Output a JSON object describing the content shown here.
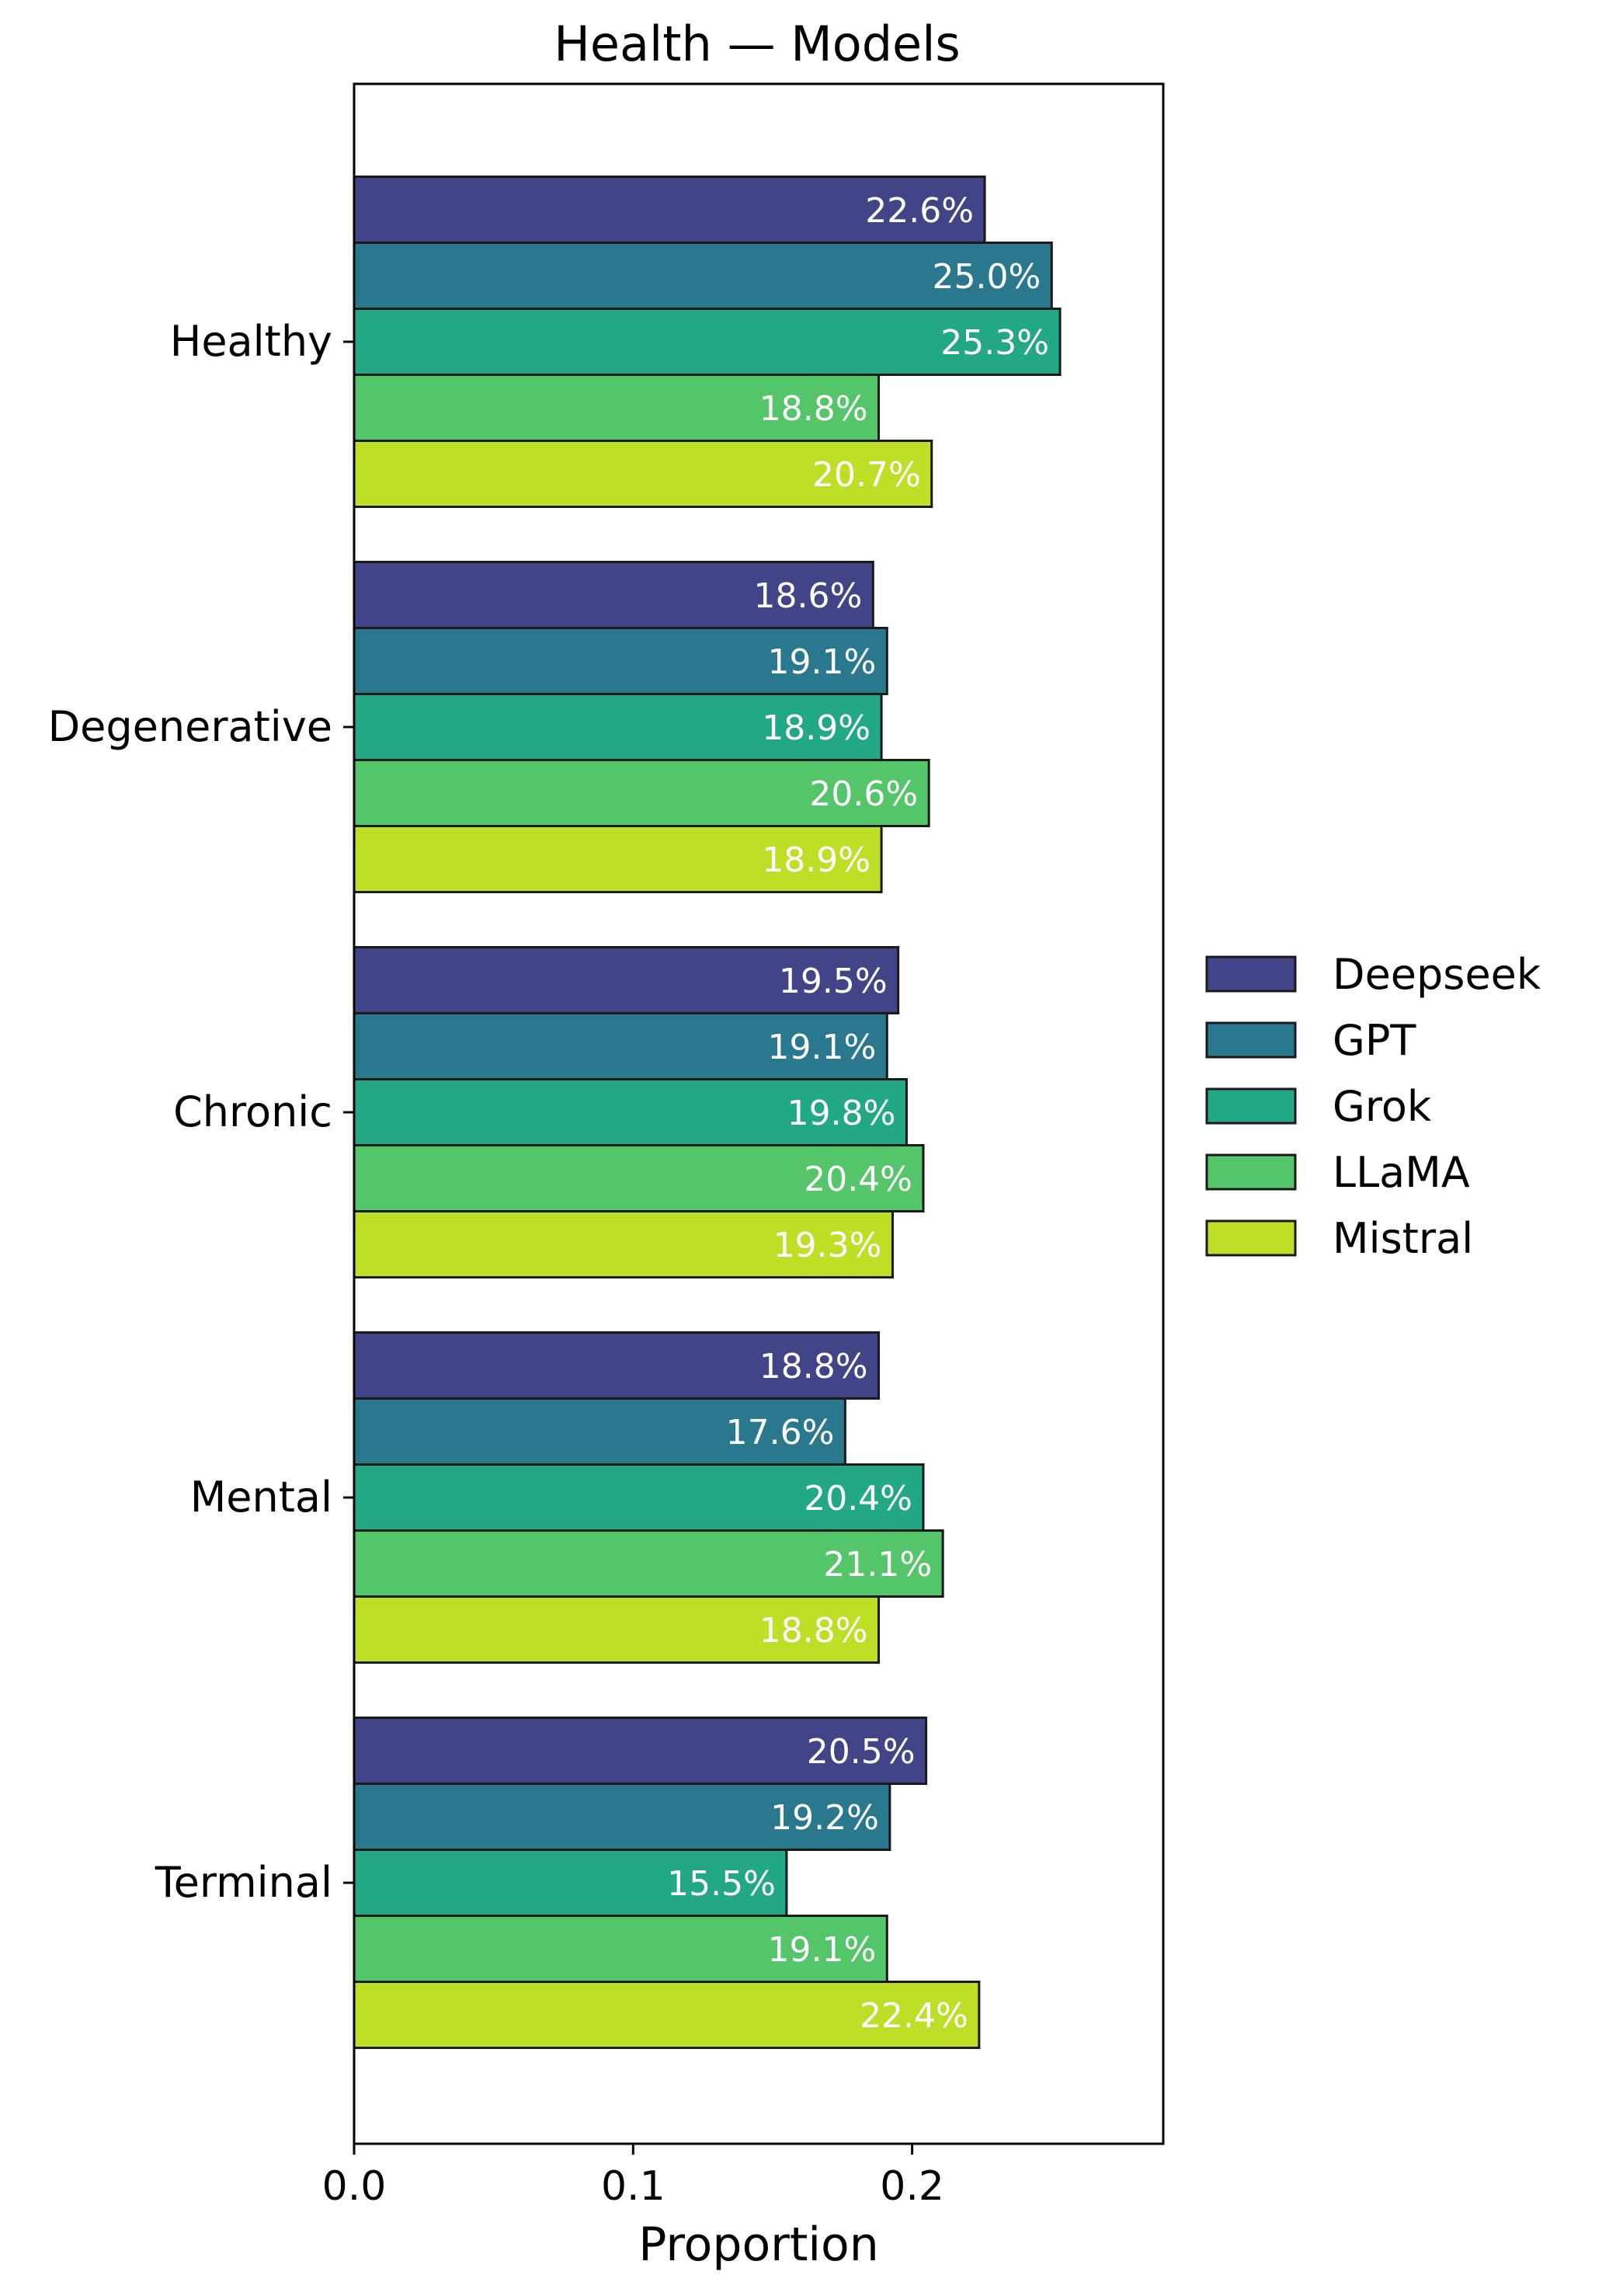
{
  "chart_data": {
    "type": "bar",
    "orientation": "horizontal",
    "title": "Health — Models",
    "xlabel": "Proportion",
    "ylabel": "",
    "xlim": [
      0,
      0.29
    ],
    "xticks": [
      "0.0",
      "0.1",
      "0.2"
    ],
    "xtick_values": [
      0.0,
      0.1,
      0.2
    ],
    "categories": [
      "Healthy",
      "Degenerative",
      "Chronic",
      "Mental",
      "Terminal"
    ],
    "series": [
      {
        "name": "Deepseek",
        "color": "#414487",
        "values": [
          0.226,
          0.186,
          0.195,
          0.188,
          0.205
        ],
        "labels": [
          "22.6%",
          "18.6%",
          "19.5%",
          "18.8%",
          "20.5%"
        ]
      },
      {
        "name": "GPT",
        "color": "#2a788e",
        "values": [
          0.25,
          0.191,
          0.191,
          0.176,
          0.192
        ],
        "labels": [
          "25.0%",
          "19.1%",
          "19.1%",
          "17.6%",
          "19.2%"
        ]
      },
      {
        "name": "Grok",
        "color": "#22a884",
        "values": [
          0.253,
          0.189,
          0.198,
          0.204,
          0.155
        ],
        "labels": [
          "25.3%",
          "18.9%",
          "19.8%",
          "20.4%",
          "15.5%"
        ]
      },
      {
        "name": "LLaMA",
        "color": "#54c568",
        "values": [
          0.188,
          0.206,
          0.204,
          0.211,
          0.191
        ],
        "labels": [
          "18.8%",
          "20.6%",
          "20.4%",
          "21.1%",
          "19.1%"
        ]
      },
      {
        "name": "Mistral",
        "color": "#bddf26",
        "values": [
          0.207,
          0.189,
          0.193,
          0.188,
          0.224
        ],
        "labels": [
          "20.7%",
          "18.9%",
          "19.3%",
          "18.8%",
          "22.4%"
        ]
      }
    ],
    "legend_position": "right",
    "grid": false
  }
}
